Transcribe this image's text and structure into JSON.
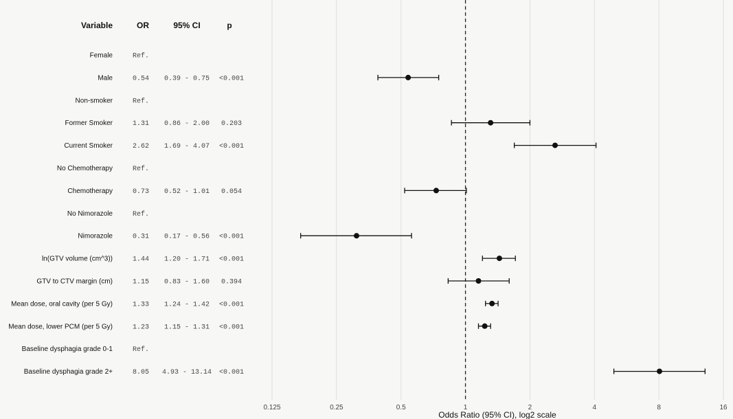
{
  "headers": {
    "variable": "Variable",
    "or": "OR",
    "ci": "95% CI",
    "p": "p"
  },
  "chart_data": {
    "type": "forest",
    "xlabel": "Odds Ratio (95% CI), log2 scale",
    "x_scale": "log2",
    "xlim": [
      0.125,
      16
    ],
    "xticks": [
      0.125,
      0.25,
      0.5,
      1,
      2,
      4,
      8,
      16
    ],
    "xtick_labels": [
      "0.125",
      "0.25",
      "0.5",
      "1",
      "2",
      "4",
      "8",
      "16"
    ],
    "reference_line": 1,
    "grid": true,
    "rows": [
      {
        "variable": "Female",
        "or_text": "Ref.",
        "ci_text": "",
        "p_text": ""
      },
      {
        "variable": "Male",
        "or_text": "0.54",
        "ci_text": "0.39 - 0.75",
        "p_text": "<0.001",
        "or": 0.54,
        "lo": 0.39,
        "hi": 0.75
      },
      {
        "variable": "Non-smoker",
        "or_text": "Ref.",
        "ci_text": "",
        "p_text": ""
      },
      {
        "variable": "Former Smoker",
        "or_text": "1.31",
        "ci_text": "0.86 - 2.00",
        "p_text": "0.203",
        "or": 1.31,
        "lo": 0.86,
        "hi": 2.0
      },
      {
        "variable": "Current Smoker",
        "or_text": "2.62",
        "ci_text": "1.69 - 4.07",
        "p_text": "<0.001",
        "or": 2.62,
        "lo": 1.69,
        "hi": 4.07
      },
      {
        "variable": "No Chemotherapy",
        "or_text": "Ref.",
        "ci_text": "",
        "p_text": ""
      },
      {
        "variable": "Chemotherapy",
        "or_text": "0.73",
        "ci_text": "0.52 - 1.01",
        "p_text": "0.054",
        "or": 0.73,
        "lo": 0.52,
        "hi": 1.01
      },
      {
        "variable": "No Nimorazole",
        "or_text": "Ref.",
        "ci_text": "",
        "p_text": ""
      },
      {
        "variable": "Nimorazole",
        "or_text": "0.31",
        "ci_text": "0.17 - 0.56",
        "p_text": "<0.001",
        "or": 0.31,
        "lo": 0.17,
        "hi": 0.56
      },
      {
        "variable": "ln(GTV volume (cm^3))",
        "or_text": "1.44",
        "ci_text": "1.20 - 1.71",
        "p_text": "<0.001",
        "or": 1.44,
        "lo": 1.2,
        "hi": 1.71
      },
      {
        "variable": "GTV to CTV margin (cm)",
        "or_text": "1.15",
        "ci_text": "0.83 - 1.60",
        "p_text": "0.394",
        "or": 1.15,
        "lo": 0.83,
        "hi": 1.6
      },
      {
        "variable": "Mean dose, oral cavity (per 5 Gy)",
        "or_text": "1.33",
        "ci_text": "1.24 - 1.42",
        "p_text": "<0.001",
        "or": 1.33,
        "lo": 1.24,
        "hi": 1.42
      },
      {
        "variable": "Mean dose, lower PCM (per 5 Gy)",
        "or_text": "1.23",
        "ci_text": "1.15 - 1.31",
        "p_text": "<0.001",
        "or": 1.23,
        "lo": 1.15,
        "hi": 1.31
      },
      {
        "variable": "Baseline dysphagia grade 0-1",
        "or_text": "Ref.",
        "ci_text": "",
        "p_text": ""
      },
      {
        "variable": "Baseline dysphagia grade 2+",
        "or_text": "8.05",
        "ci_text": "4.93 - 13.14",
        "p_text": "<0.001",
        "or": 8.05,
        "lo": 4.93,
        "hi": 13.14
      }
    ]
  }
}
